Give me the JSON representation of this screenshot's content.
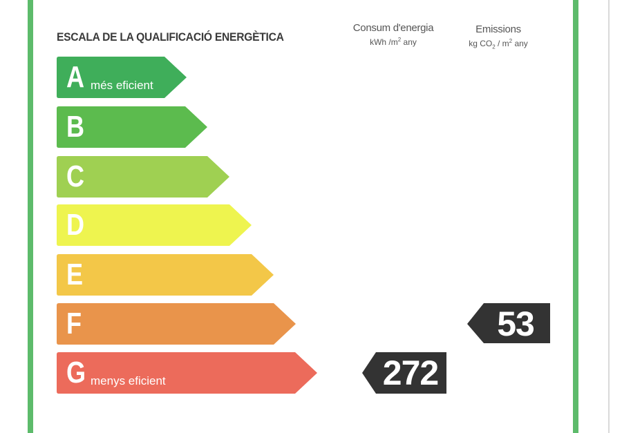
{
  "title": "ESCALA DE LA QUALIFICACIÓ ENERGÈTICA",
  "columns": {
    "energy": {
      "label": "Consum d'energia",
      "unit_prefix": "kWh /m",
      "unit_sup": "2",
      "unit_suffix": " any"
    },
    "emissions": {
      "label": "Emissions",
      "unit_prefix": "kg CO",
      "unit_sub": "2",
      "unit_mid": " / m",
      "unit_sup": "2",
      "unit_suffix": " any"
    }
  },
  "bands": [
    {
      "letter": "A",
      "sub": "més eficient",
      "color": "#3fae5a"
    },
    {
      "letter": "B",
      "sub": "",
      "color": "#5cbb4e"
    },
    {
      "letter": "C",
      "sub": "",
      "color": "#9fd052"
    },
    {
      "letter": "D",
      "sub": "",
      "color": "#eef44f"
    },
    {
      "letter": "E",
      "sub": "",
      "color": "#f3c748"
    },
    {
      "letter": "F",
      "sub": "",
      "color": "#e9944b"
    },
    {
      "letter": "G",
      "sub": "menys eficient",
      "color": "#ec6b5b"
    }
  ],
  "ratings": {
    "energy": {
      "value": "272",
      "band": "G"
    },
    "emissions": {
      "value": "53",
      "band": "F"
    }
  },
  "marker_color": "#333333",
  "frame_color": "#5dbb6b"
}
